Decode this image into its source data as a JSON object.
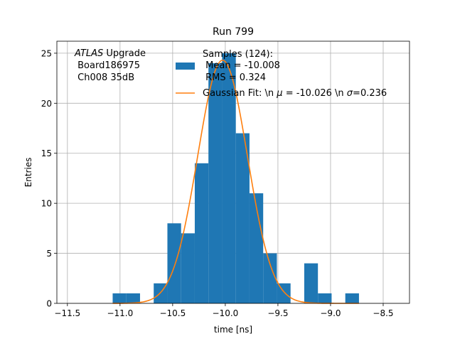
{
  "chart_data": {
    "type": "bar",
    "title": "Run 799",
    "xlabel": "time [ns]",
    "ylabel": "Entries",
    "xlim": [
      -11.6,
      -8.25
    ],
    "ylim": [
      0,
      26.2
    ],
    "grid": true,
    "xticks": [
      {
        "value": -11.5,
        "label": "−11.5"
      },
      {
        "value": -11.0,
        "label": "−11.0"
      },
      {
        "value": -10.5,
        "label": "−10.5"
      },
      {
        "value": -10.0,
        "label": "−10.0"
      },
      {
        "value": -9.5,
        "label": "−9.5"
      },
      {
        "value": -9.0,
        "label": "−9.0"
      },
      {
        "value": -8.5,
        "label": "−8.5"
      }
    ],
    "yticks": [
      {
        "value": 0,
        "label": "0"
      },
      {
        "value": 5,
        "label": "5"
      },
      {
        "value": 10,
        "label": "10"
      },
      {
        "value": 15,
        "label": "15"
      },
      {
        "value": 20,
        "label": "20"
      },
      {
        "value": 25,
        "label": "25"
      }
    ],
    "histogram": {
      "name": "Samples (124):",
      "color": "#1f77b4",
      "bin_edges": [
        -11.07,
        -10.94,
        -10.81,
        -10.68,
        -10.55,
        -10.42,
        -10.29,
        -10.16,
        -10.03,
        -9.9,
        -9.77,
        -9.64,
        -9.51,
        -9.38,
        -9.25,
        -9.12,
        -8.99,
        -8.86,
        -8.73
      ],
      "counts": [
        1,
        1,
        0,
        2,
        8,
        7,
        14,
        24,
        25,
        17,
        11,
        5,
        2,
        0,
        4,
        1,
        0,
        1
      ]
    },
    "fit": {
      "name": "Gaussian Fit: \\n $\\mu$ = -10.026 \\n $\\sigma$=0.236",
      "color": "#ff7f0e",
      "mu": -10.026,
      "sigma": 0.236,
      "amplitude": 24.3,
      "x_range": [
        -11.07,
        -8.73
      ]
    },
    "legend_position": "top-right",
    "legend": {
      "samples_title": "Samples (124):",
      "samples_mean": " Mean = -10.008",
      "samples_rms": " RMS = 0.324",
      "fit_prefix": "Gaussian Fit: \\n ",
      "fit_mu_symbol": "μ",
      "fit_mu_value": " = -10.026 \\n ",
      "fit_sigma_symbol": "σ",
      "fit_sigma_value": "=0.236"
    },
    "annotation": {
      "atlas": "ATLAS",
      "upgrade": " Upgrade",
      "line2": " Board186975",
      "line3": " Ch008 35dB"
    }
  }
}
